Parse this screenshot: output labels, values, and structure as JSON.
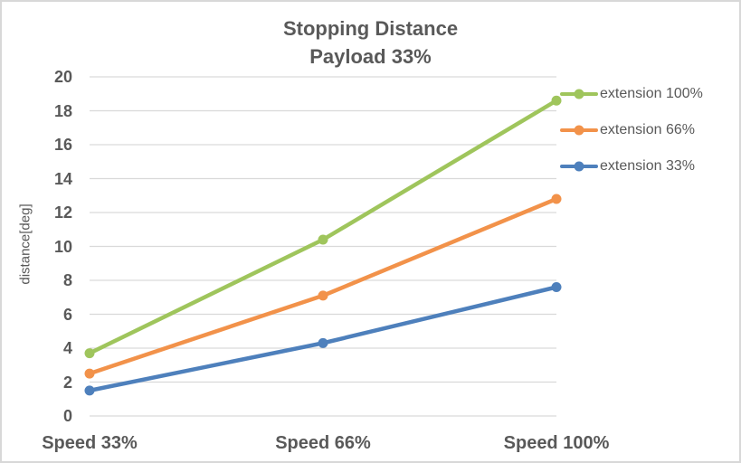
{
  "window": {
    "background": "#ffffff",
    "border_color": "#d8d8d8"
  },
  "chart_data": {
    "type": "line",
    "title": "Stopping Distance",
    "subtitle": "Payload 33%",
    "xlabel": "",
    "ylabel": "distance[deg]",
    "categories": [
      "Speed 33%",
      "Speed 66%",
      "Speed 100%"
    ],
    "series": [
      {
        "name": "extension 100%",
        "color": "#9fc55c",
        "values": [
          3.7,
          10.4,
          18.6
        ]
      },
      {
        "name": "extension 66%",
        "color": "#f2924a",
        "values": [
          2.5,
          7.1,
          12.8
        ]
      },
      {
        "name": "extension 33%",
        "color": "#4e80bc",
        "values": [
          1.5,
          4.3,
          7.6
        ]
      }
    ],
    "ylim": [
      0,
      20
    ],
    "y_tick_step": 2,
    "grid": "horizontal",
    "gridline_color": "#d9d9d9",
    "text_color": "#595959",
    "legend_position": "right"
  }
}
